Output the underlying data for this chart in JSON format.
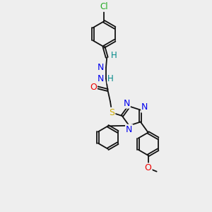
{
  "background_color": "#eeeeee",
  "figure_size": [
    3.0,
    3.0
  ],
  "dpi": 100,
  "bond_color": "#111111",
  "cl_color": "#22aa22",
  "n_color": "#0000ee",
  "o_color": "#ee0000",
  "s_color": "#ccaa00",
  "h_color": "#008888",
  "xlim": [
    -1.0,
    1.8
  ],
  "ylim": [
    -1.8,
    3.0
  ]
}
